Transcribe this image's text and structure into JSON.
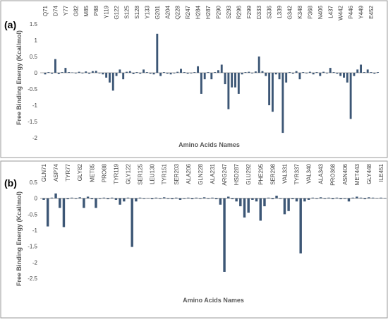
{
  "chart_data": [
    {
      "type": "bar",
      "label": "(a)",
      "ylabel": "Free Binding Energy (Kcal/mol)",
      "xlabel": "Amino Acids Names",
      "color": "#3c5675",
      "ylim": [
        -2,
        1.5
      ],
      "yticks": [
        1.5,
        1,
        0.5,
        0,
        -0.5,
        -1,
        -1.5,
        -2
      ],
      "grid": false,
      "categories": [
        "Q71",
        null,
        null,
        "D74",
        null,
        null,
        "Y77",
        null,
        null,
        "G82",
        null,
        null,
        "M85",
        null,
        null,
        "P88",
        null,
        null,
        "Y119",
        null,
        null,
        "G122",
        null,
        null,
        "S125",
        null,
        null,
        "S128",
        null,
        null,
        "Y133",
        null,
        null,
        "G201",
        null,
        null,
        "A204",
        null,
        null,
        "Q228",
        null,
        null,
        "R247",
        null,
        null,
        "H284",
        null,
        null,
        "H287",
        null,
        null,
        "P290",
        null,
        null,
        "S293",
        null,
        null,
        "R296",
        null,
        null,
        "F299",
        null,
        null,
        "D333",
        null,
        null,
        "S336",
        null,
        null,
        "L339",
        null,
        null,
        "G342",
        null,
        null,
        "K348",
        null,
        null,
        "P368",
        null,
        null,
        "N406",
        null,
        null,
        "L437",
        null,
        null,
        "W442",
        null,
        null,
        "P446",
        null,
        null,
        "Y449",
        null,
        null,
        "E452",
        null,
        null
      ],
      "values": [
        -0.05,
        0.02,
        -0.03,
        0.42,
        -0.04,
        0.02,
        0.15,
        0.02,
        0.01,
        -0.02,
        0.03,
        -0.02,
        0.04,
        -0.03,
        0.05,
        0.06,
        -0.02,
        -0.05,
        -0.15,
        -0.3,
        -0.55,
        -0.1,
        0.1,
        -0.2,
        0.03,
        0.05,
        -0.04,
        0.02,
        -0.03,
        0.1,
        0.02,
        -0.03,
        -0.05,
        1.2,
        -0.1,
        0.02,
        -0.03,
        -0.05,
        -0.02,
        0.03,
        0.12,
        0.02,
        -0.03,
        -0.02,
        0.02,
        0.2,
        -0.65,
        -0.2,
        0.02,
        -0.2,
        0.02,
        0.08,
        0.25,
        -0.35,
        -1.12,
        -0.45,
        -0.45,
        -0.65,
        -0.05,
        0.02,
        0.03,
        -0.02,
        0.04,
        0.5,
        0.05,
        -0.1,
        -1.0,
        -1.2,
        -0.05,
        -0.2,
        -1.85,
        -0.3,
        0.02,
        -0.03,
        0.05,
        -0.2,
        0.02,
        -0.02,
        0.03,
        -0.05,
        0.02,
        -0.1,
        0.03,
        -0.02,
        0.15,
        0.02,
        -0.03,
        -0.1,
        -0.15,
        -0.3,
        -1.42,
        -0.1,
        0.1,
        0.25,
        0.02,
        0.1,
        0.02,
        -0.03,
        0.02
      ]
    },
    {
      "type": "bar",
      "label": "(b)",
      "ylabel": "Free Binding Energy (Kcal/mol)",
      "xlabel": "Amino Acids Names",
      "color": "#3c5675",
      "ylim": [
        -2.5,
        0.5
      ],
      "yticks": [
        0.5,
        0,
        -0.5,
        -1,
        -1.5,
        -2,
        -2.5
      ],
      "grid": false,
      "categories": [
        "GLN71",
        null,
        null,
        "ASP74",
        null,
        null,
        "TYR77",
        null,
        null,
        "GLY82",
        null,
        null,
        "MET85",
        null,
        null,
        "PRO88",
        null,
        null,
        "TYR119",
        null,
        null,
        "GLY122",
        null,
        null,
        "SER125",
        null,
        null,
        "LEU130",
        null,
        null,
        "TYR151",
        null,
        null,
        "SER203",
        null,
        null,
        "ALA206",
        null,
        null,
        "GLN228",
        null,
        null,
        "ALA231",
        null,
        null,
        "ARG247",
        null,
        null,
        "HSD287",
        null,
        null,
        "GLU292",
        null,
        null,
        "PHE295",
        null,
        null,
        "SER298",
        null,
        null,
        "VAL331",
        null,
        null,
        "TYR337",
        null,
        null,
        "VAL340",
        null,
        null,
        "ALA343",
        null,
        null,
        "PRO368",
        null,
        null,
        "ASN406",
        null,
        null,
        "MET443",
        null,
        null,
        "GLY448",
        null,
        null,
        "ILE451",
        null
      ],
      "values": [
        -0.05,
        -0.88,
        0.02,
        0.15,
        -0.3,
        -0.9,
        -0.03,
        0.02,
        -0.02,
        0.03,
        -0.3,
        0.05,
        -0.03,
        -0.3,
        -0.02,
        0.02,
        -0.03,
        0.02,
        -0.05,
        -0.2,
        -0.1,
        0.02,
        -1.52,
        -0.1,
        0.02,
        -0.02,
        0.01,
        -0.03,
        0.02,
        -0.02,
        0.03,
        -0.02,
        -0.03,
        0.02,
        -0.05,
        -0.02,
        0.02,
        -0.03,
        0.02,
        -0.02,
        0.03,
        -0.02,
        0.02,
        -0.03,
        -0.2,
        -2.3,
        0.05,
        -0.03,
        -0.1,
        -0.25,
        -0.6,
        -0.45,
        -0.05,
        -0.1,
        -0.7,
        -0.25,
        0.02,
        -0.03,
        0.08,
        -0.02,
        -0.5,
        -0.4,
        -0.03,
        -0.1,
        -1.72,
        -0.1,
        -0.05,
        0.02,
        -0.02,
        0.03,
        -0.02,
        0.02,
        -0.03,
        0.02,
        -0.03,
        -0.02,
        -0.1,
        0.02,
        0.05,
        0.02,
        -0.03,
        0.03,
        0.02,
        0.01,
        0.02,
        0.01
      ]
    }
  ]
}
